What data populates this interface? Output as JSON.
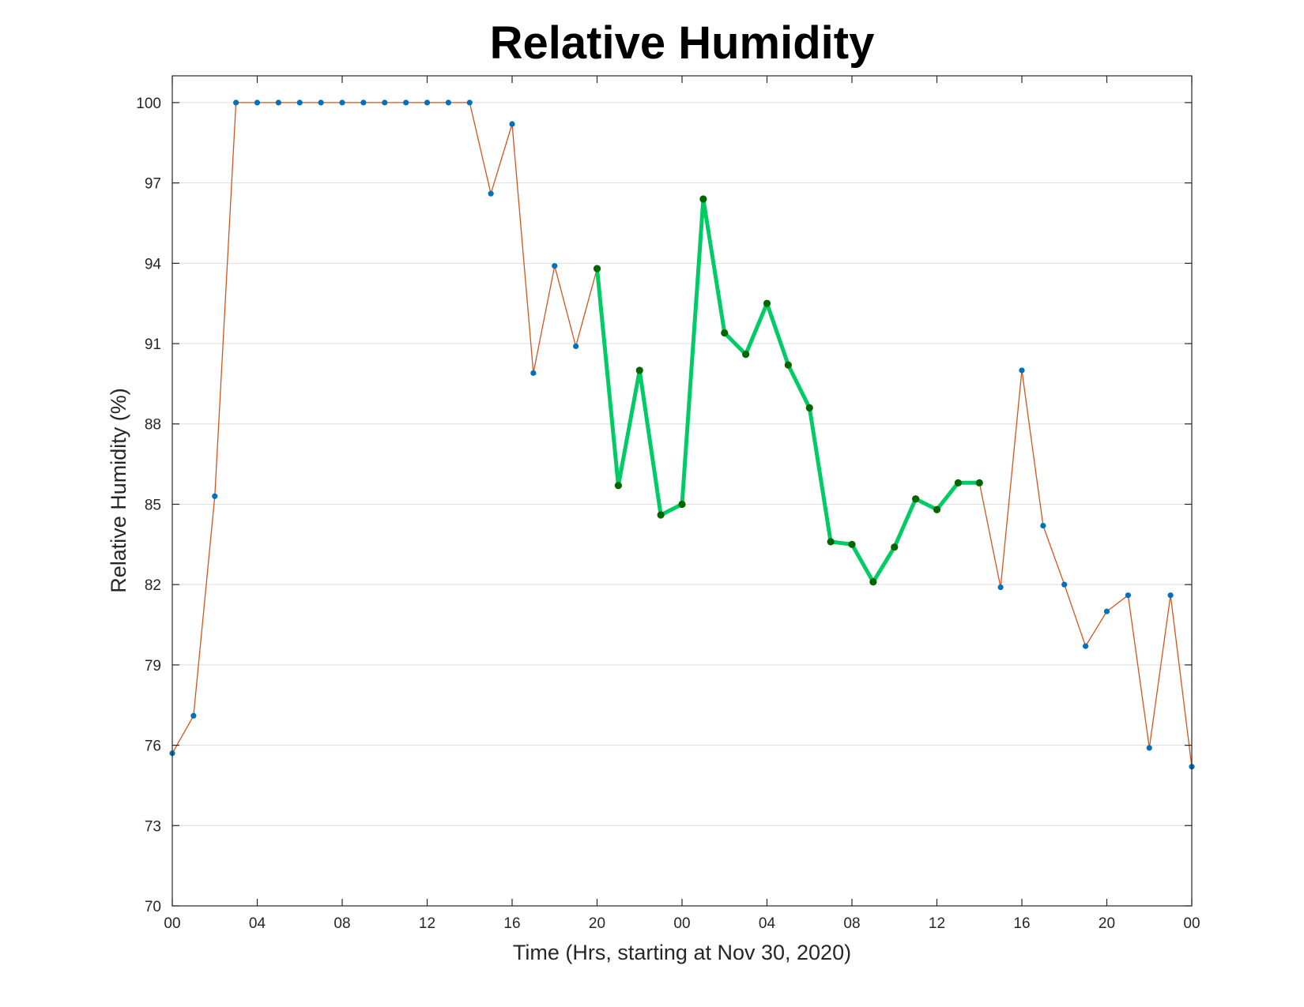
{
  "chart_data": {
    "type": "line",
    "title": "Relative Humidity",
    "xlabel": "Time (Hrs, starting at Nov 30, 2020)",
    "ylabel": "Relative Humidity (%)",
    "ylim": [
      70,
      101
    ],
    "xlim": [
      0,
      48
    ],
    "grid": "horizontal",
    "x_ticks": [
      {
        "x": 0,
        "label": "00"
      },
      {
        "x": 4,
        "label": "04"
      },
      {
        "x": 8,
        "label": "08"
      },
      {
        "x": 12,
        "label": "12"
      },
      {
        "x": 16,
        "label": "16"
      },
      {
        "x": 20,
        "label": "20"
      },
      {
        "x": 24,
        "label": "00"
      },
      {
        "x": 28,
        "label": "04"
      },
      {
        "x": 32,
        "label": "08"
      },
      {
        "x": 36,
        "label": "12"
      },
      {
        "x": 40,
        "label": "16"
      },
      {
        "x": 44,
        "label": "20"
      },
      {
        "x": 48,
        "label": "00"
      }
    ],
    "y_ticks": [
      70,
      73,
      76,
      79,
      82,
      85,
      88,
      91,
      94,
      97,
      100
    ],
    "series": [
      {
        "style": "thin-line-with-markers",
        "line_color": "#d95319",
        "marker_color": "#0072bd",
        "x": [
          0,
          1,
          2,
          3,
          4,
          5,
          6,
          7,
          8,
          9,
          10,
          11,
          12,
          13,
          14,
          15,
          16,
          17,
          18,
          19,
          20,
          21,
          22,
          23,
          24,
          25,
          26,
          27,
          28,
          29,
          30,
          31,
          32,
          33,
          34,
          35,
          36,
          37,
          38,
          39,
          40,
          41,
          42,
          43,
          44,
          45,
          46,
          47,
          48
        ],
        "values": [
          75.7,
          77.1,
          85.3,
          100,
          100,
          100,
          100,
          100,
          100,
          100,
          100,
          100,
          100,
          100,
          100,
          96.6,
          99.2,
          89.9,
          93.9,
          90.9,
          93.8,
          85.7,
          90.0,
          84.6,
          85.0,
          96.4,
          91.4,
          90.6,
          92.5,
          90.2,
          88.6,
          83.6,
          83.5,
          82.1,
          83.4,
          85.2,
          84.8,
          85.8,
          85.8,
          81.9,
          90.0,
          84.2,
          82.0,
          79.7,
          81.0,
          81.6,
          75.9,
          81.6,
          75.2
        ]
      },
      {
        "style": "thick-highlight",
        "line_color": "#00cc66",
        "marker_color": "#006600",
        "x": [
          20,
          21,
          22,
          23,
          24,
          25,
          26,
          27,
          28,
          29,
          30,
          31,
          32,
          33,
          34,
          35,
          36,
          37,
          38
        ],
        "values": [
          93.8,
          85.7,
          90.0,
          84.6,
          85.0,
          96.4,
          91.4,
          90.6,
          92.5,
          90.2,
          88.6,
          83.6,
          83.5,
          82.1,
          83.4,
          85.2,
          84.8,
          85.8,
          85.8
        ]
      }
    ]
  }
}
